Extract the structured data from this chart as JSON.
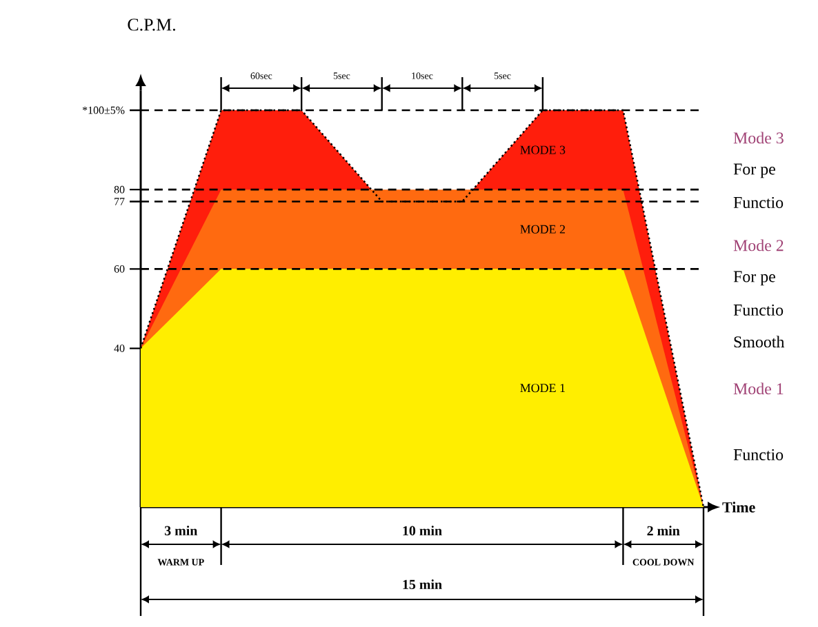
{
  "chart_data": {
    "type": "area",
    "ylabel": "C.P.M.",
    "xlabel": "Time",
    "categories": [
      null,
      null,
      null,
      null,
      null,
      null,
      null,
      null
    ],
    "series": [
      {
        "name": "MODE 1",
        "color": "#ffee00",
        "values": [
          40,
          60,
          60,
          60,
          60,
          60,
          60,
          0
        ]
      },
      {
        "name": "MODE 2",
        "color": "#ff6a10",
        "values": [
          40,
          80,
          80,
          80,
          80,
          80,
          80,
          0
        ]
      },
      {
        "name": "MODE 3",
        "color": "#ff1e0c",
        "line_style": "dotted",
        "values": [
          40,
          100,
          100,
          77,
          77,
          100,
          100,
          0
        ]
      }
    ],
    "ylim": [
      0,
      105
    ],
    "yticks": [
      40,
      60,
      77,
      80,
      {
        "value": 100,
        "label": "*100±5%"
      }
    ],
    "tick_labels": "y",
    "ref_lines": [
      {
        "axis": "y",
        "value": 100,
        "line_style": "dashed"
      },
      {
        "axis": "y",
        "value": 80,
        "line_style": "dashed"
      },
      {
        "axis": "y",
        "value": 77,
        "line_style": "dashed"
      },
      {
        "axis": "y",
        "value": 60,
        "line_style": "dashed"
      }
    ],
    "annotations": [
      "60sec",
      "5sec",
      "10sec",
      "5sec",
      "3 min",
      "10 min",
      "2 min",
      "WARM UP",
      "15 min",
      "COOL DOWN",
      "Mode 3",
      "For pe",
      "Functio",
      "Mode 2",
      "For pe",
      "Functio",
      "Smooth",
      "Mode 1",
      "Functio"
    ]
  }
}
